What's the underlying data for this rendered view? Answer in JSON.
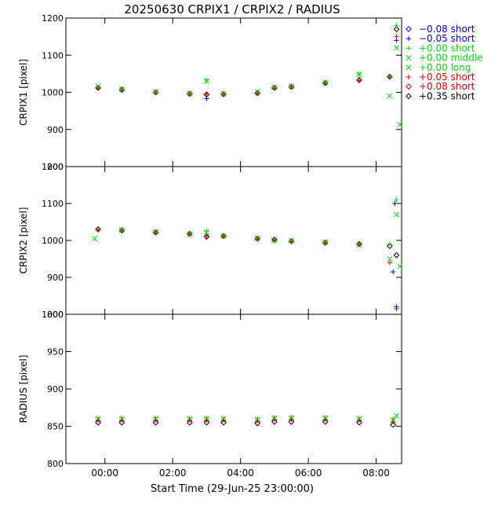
{
  "title": "20250630 CRPIX1 / CRPIX2 / RADIUS",
  "xlabel": "Start Time (29-Jun-25 23:00:00)",
  "xticks": [
    {
      "value": 1,
      "label": "00:00"
    },
    {
      "value": 3,
      "label": "02:00"
    },
    {
      "value": 5,
      "label": "04:00"
    },
    {
      "value": 7,
      "label": "06:00"
    },
    {
      "value": 9,
      "label": "08:00"
    }
  ],
  "xlim": [
    -0.15,
    9.75
  ],
  "legend": [
    {
      "label": "−0.08 short",
      "symbol": "diamond",
      "color": "#0000cc"
    },
    {
      "label": "−0.05 short",
      "symbol": "plus",
      "color": "#0000cc"
    },
    {
      "label": "+0.00 short",
      "symbol": "plus",
      "color": "#00dd00"
    },
    {
      "label": "+0.00 middle",
      "symbol": "cross",
      "color": "#00dd00"
    },
    {
      "label": "+0.00 long",
      "symbol": "cross",
      "color": "#00dd00"
    },
    {
      "label": "+0.05 short",
      "symbol": "plus",
      "color": "#dd0000"
    },
    {
      "label": "+0.08 short",
      "symbol": "diamond",
      "color": "#dd0000"
    },
    {
      "label": "+0.35 short",
      "symbol": "diamond",
      "color": "#000000"
    }
  ],
  "chart_data": [
    {
      "type": "scatter",
      "ylabel": "CRPIX1 [pixel]",
      "ylim": [
        800,
        1200
      ],
      "yticks": [
        800,
        900,
        1000,
        1100,
        1200
      ],
      "series": [
        {
          "name": "+0.35 short",
          "symbol": "diamond",
          "color": "#000000",
          "x": [
            0.8,
            1.5,
            2.5,
            3.5,
            4.0,
            4.5,
            5.5,
            6.0,
            6.5,
            7.5,
            8.5,
            9.4,
            9.6
          ],
          "y": [
            1012,
            1007,
            1000,
            996,
            994,
            995,
            998,
            1012,
            1015,
            1025,
            1033,
            1042,
            1170
          ]
        },
        {
          "name": "+0.00 short",
          "symbol": "plus",
          "color": "#00dd00",
          "x": [
            0.8,
            1.5,
            2.5,
            3.5,
            4.0,
            4.5,
            5.5,
            6.0,
            6.5,
            7.5,
            8.5,
            9.4,
            9.6
          ],
          "y": [
            1014,
            1009,
            1002,
            998,
            1033,
            997,
            1000,
            1014,
            1017,
            1027,
            1050,
            1044,
            1180
          ]
        },
        {
          "name": "+0.00 long",
          "symbol": "cross",
          "color": "#00dd00",
          "x": [
            0.8,
            1.5,
            2.5,
            3.5,
            4.0,
            4.5,
            5.5,
            6.0,
            6.5,
            7.5,
            8.5,
            9.4,
            9.6,
            9.7
          ],
          "y": [
            1016,
            1008,
            1001,
            997,
            1030,
            996,
            1001,
            1013,
            1016,
            1026,
            1048,
            990,
            1120,
            913
          ]
        },
        {
          "name": "+0.05 short",
          "symbol": "plus",
          "color": "#dd0000",
          "x": [
            0.8,
            1.5,
            2.5,
            3.5,
            4.0,
            4.5,
            5.5,
            6.0,
            6.5,
            7.5,
            8.5,
            9.4,
            9.6
          ],
          "y": [
            1011,
            1006,
            999,
            995,
            995,
            994,
            997,
            1011,
            1014,
            1024,
            1032,
            1041,
            1150
          ]
        },
        {
          "name": "−0.05 short",
          "symbol": "plus",
          "color": "#0000cc",
          "x": [
            4.0,
            9.6
          ],
          "y": [
            983,
            1140
          ]
        }
      ]
    },
    {
      "type": "scatter",
      "ylabel": "CRPIX2 [pixel]",
      "ylim": [
        800,
        1200
      ],
      "yticks": [
        800,
        900,
        1000,
        1100,
        1200
      ],
      "series": [
        {
          "name": "+0.35 short",
          "symbol": "diamond",
          "color": "#000000",
          "x": [
            0.8,
            1.5,
            2.5,
            3.5,
            4.0,
            4.5,
            5.5,
            6.0,
            6.5,
            7.5,
            8.5,
            9.4,
            9.6
          ],
          "y": [
            1030,
            1027,
            1022,
            1018,
            1010,
            1012,
            1005,
            1002,
            998,
            994,
            990,
            985,
            960
          ]
        },
        {
          "name": "+0.00 short",
          "symbol": "plus",
          "color": "#00dd00",
          "x": [
            0.8,
            1.5,
            2.5,
            3.5,
            4.0,
            4.5,
            5.5,
            6.0,
            6.5,
            7.5,
            8.5,
            9.4,
            9.6
          ],
          "y": [
            1028,
            1029,
            1024,
            1019,
            1025,
            1013,
            1007,
            998,
            1000,
            996,
            989,
            990,
            1110
          ]
        },
        {
          "name": "+0.00 long",
          "symbol": "cross",
          "color": "#00dd00",
          "x": [
            0.7,
            1.5,
            2.5,
            3.5,
            4.0,
            4.5,
            5.5,
            6.0,
            6.5,
            7.5,
            8.5,
            9.4,
            9.6,
            9.7
          ],
          "y": [
            1005,
            1028,
            1023,
            1017,
            1022,
            1011,
            1006,
            1001,
            999,
            995,
            988,
            950,
            1070,
            930
          ]
        },
        {
          "name": "+0.05 short",
          "symbol": "plus",
          "color": "#dd0000",
          "x": [
            0.8,
            1.5,
            2.5,
            3.5,
            4.0,
            4.5,
            5.5,
            6.0,
            6.5,
            7.5,
            8.5,
            9.4,
            9.6
          ],
          "y": [
            1029,
            1026,
            1021,
            1017,
            1011,
            1011,
            1004,
            1001,
            997,
            993,
            989,
            940,
            815
          ]
        },
        {
          "name": "−0.05 short",
          "symbol": "plus",
          "color": "#0000cc",
          "x": [
            9.5,
            9.55,
            9.6
          ],
          "y": [
            915,
            1100,
            820
          ]
        }
      ]
    },
    {
      "type": "scatter",
      "ylabel": "RADIUS [pixel]",
      "ylim": [
        800,
        1000
      ],
      "yticks": [
        800,
        850,
        900,
        950,
        1000
      ],
      "series": [
        {
          "name": "+0.35 short",
          "symbol": "diamond",
          "color": "#000000",
          "x": [
            0.8,
            1.5,
            2.5,
            3.5,
            4.0,
            4.5,
            5.5,
            6.0,
            6.5,
            7.5,
            8.5,
            9.5
          ],
          "y": [
            855,
            855,
            855,
            855,
            855,
            855,
            854,
            856,
            856,
            856,
            855,
            852
          ]
        },
        {
          "name": "+0.00 short",
          "symbol": "plus",
          "color": "#00dd00",
          "x": [
            0.8,
            1.5,
            2.5,
            3.5,
            4.0,
            4.5,
            5.5,
            6.0,
            6.5,
            7.5,
            8.5,
            9.5
          ],
          "y": [
            861,
            861,
            861,
            861,
            861,
            861,
            860,
            862,
            862,
            862,
            861,
            860
          ]
        },
        {
          "name": "+0.00 long",
          "symbol": "cross",
          "color": "#00dd00",
          "x": [
            0.8,
            1.5,
            2.5,
            3.5,
            4.0,
            4.5,
            5.5,
            6.0,
            6.5,
            7.5,
            8.5,
            9.5,
            9.6
          ],
          "y": [
            860,
            860,
            860,
            860,
            860,
            860,
            859,
            861,
            861,
            861,
            860,
            858,
            864
          ]
        },
        {
          "name": "+0.05 short",
          "symbol": "plus",
          "color": "#dd0000",
          "x": [
            0.8,
            1.5,
            2.5,
            3.5,
            4.0,
            4.5,
            5.5,
            6.0,
            6.5,
            7.5,
            8.5,
            9.5
          ],
          "y": [
            858,
            858,
            858,
            858,
            858,
            858,
            857,
            859,
            859,
            859,
            858,
            856
          ]
        }
      ]
    }
  ]
}
